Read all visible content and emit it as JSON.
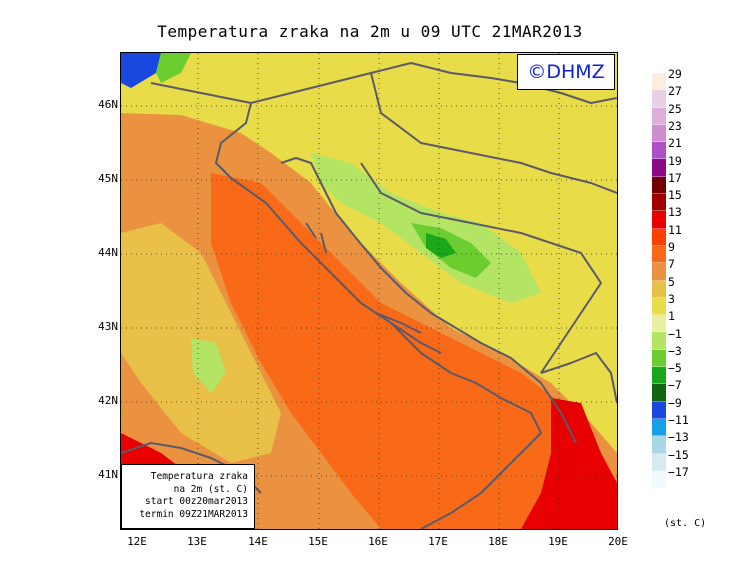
{
  "title": "Temperatura zraka na 2m u 09 UTC 21MAR2013",
  "logo": "©DHMZ",
  "info_box": {
    "line1": "Temperatura zraka",
    "line2": "na 2m (st. C)",
    "line3": "start 00z20mar2013",
    "line4": "termin 09Z21MAR2013"
  },
  "axes": {
    "x_ticks": [
      "12E",
      "13E",
      "14E",
      "15E",
      "16E",
      "17E",
      "18E",
      "19E",
      "20E"
    ],
    "y_ticks": [
      "46N",
      "45N",
      "44N",
      "43N",
      "42N",
      "41N"
    ]
  },
  "legend": {
    "unit": "(st. C)",
    "labels": [
      "29",
      "27",
      "25",
      "23",
      "21",
      "19",
      "17",
      "15",
      "13",
      "11",
      "9",
      "7",
      "5",
      "3",
      "1",
      "−1",
      "−3",
      "−5",
      "−7",
      "−9",
      "−11",
      "−13",
      "−15",
      "−17"
    ],
    "colors": [
      "#fbeee0",
      "#e8d0e6",
      "#dcaed8",
      "#cd8ed0",
      "#b050c8",
      "#8c0a86",
      "#700000",
      "#a00000",
      "#e80000",
      "#ff4000",
      "#f86a18",
      "#ea9240",
      "#e8c048",
      "#e8dc48",
      "#e8f0a0",
      "#b4e464",
      "#6ccd30",
      "#1aa81a",
      "#126612",
      "#1848e0",
      "#16a0e8",
      "#a8d8e8",
      "#d4ecf0",
      "#f0fafc"
    ]
  },
  "regions": [
    {
      "name": "open-sea-central-orange",
      "color": "#f86a18"
    },
    {
      "name": "coastal-zone-light-orange",
      "color": "#ea9240"
    },
    {
      "name": "inland-zone-yellow",
      "color": "#e8dc48"
    },
    {
      "name": "dinaric-highlands-green",
      "color": "#b4e464"
    },
    {
      "name": "south-east-red",
      "color": "#e80000"
    },
    {
      "name": "north-west-blue",
      "color": "#1848e0"
    }
  ]
}
